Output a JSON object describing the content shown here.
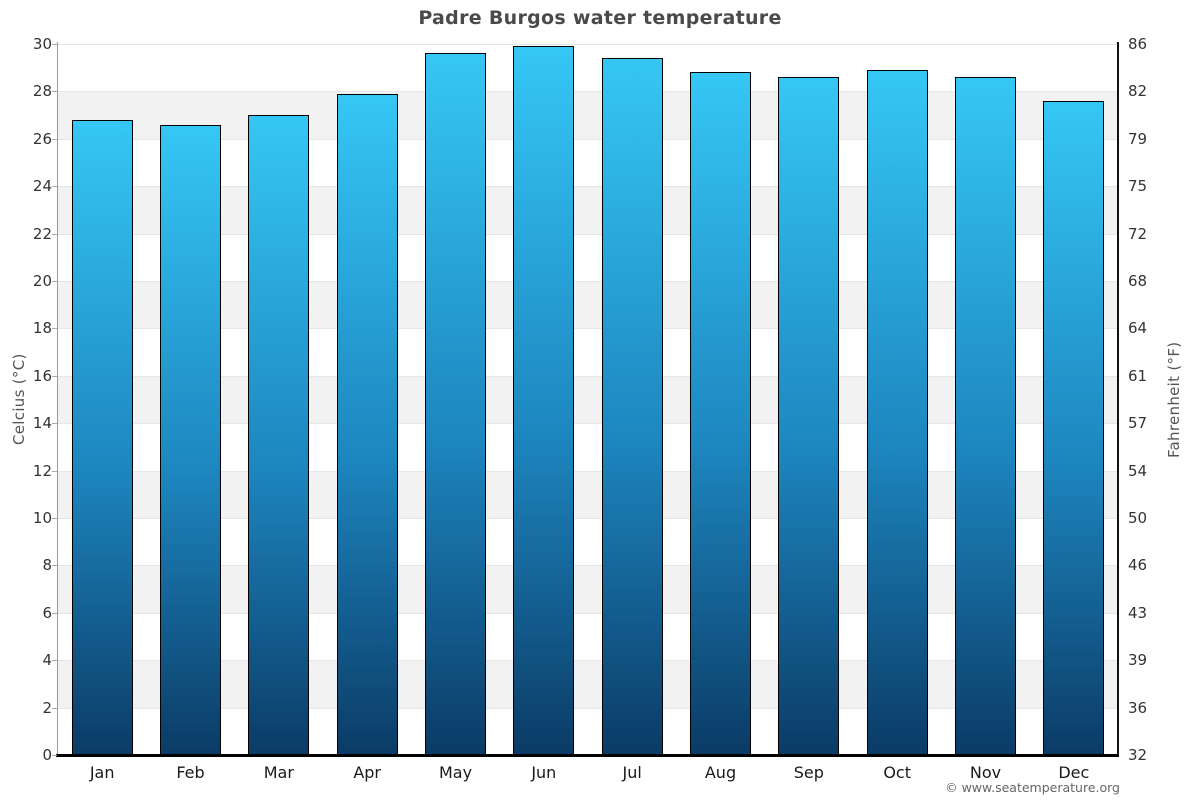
{
  "title": "Padre Burgos water temperature",
  "footer_credit": "© www.seatemperature.org",
  "axes": {
    "left_title": "Celcius (°C)",
    "right_title": "Fahrenheit (°F)",
    "celsius_ticks": [
      30,
      28,
      26,
      24,
      22,
      20,
      18,
      16,
      14,
      12,
      10,
      8,
      6,
      4,
      2,
      0
    ],
    "fahrenheit_ticks": [
      86,
      82,
      79,
      75,
      72,
      68,
      64,
      61,
      57,
      54,
      50,
      46,
      43,
      39,
      36,
      32
    ]
  },
  "colors": {
    "bar_gradient_top": "#35c7f5",
    "bar_gradient_mid": "#1d86bf",
    "bar_gradient_bottom": "#0b3b66",
    "bar_border": "#000000",
    "band_gray": "#f2f2f3",
    "band_white": "#ffffff",
    "gridline": "#e6e6e6",
    "title_text": "#4a4a4a",
    "tick_text": "#333333",
    "month_text": "#1a1a1a",
    "axis_title_text": "#555555",
    "footer_text": "#666666"
  },
  "chart_data": {
    "type": "bar",
    "title": "Padre Burgos water temperature",
    "categories": [
      "Jan",
      "Feb",
      "Mar",
      "Apr",
      "May",
      "Jun",
      "Jul",
      "Aug",
      "Sep",
      "Oct",
      "Nov",
      "Dec"
    ],
    "values": [
      26.8,
      26.6,
      27.0,
      27.9,
      29.6,
      29.9,
      29.4,
      28.8,
      28.6,
      28.9,
      28.6,
      27.6
    ],
    "unit": "°C",
    "xlabel": "",
    "ylabel_left": "Celcius (°C)",
    "ylabel_right": "Fahrenheit (°F)",
    "ylim": [
      0,
      30
    ],
    "y_tick_step": 2,
    "grid": "alternating horizontal bands every 2°C, white and light gray",
    "legend": false,
    "bar_color": "vertical gradient light cyan to dark navy per bar"
  }
}
